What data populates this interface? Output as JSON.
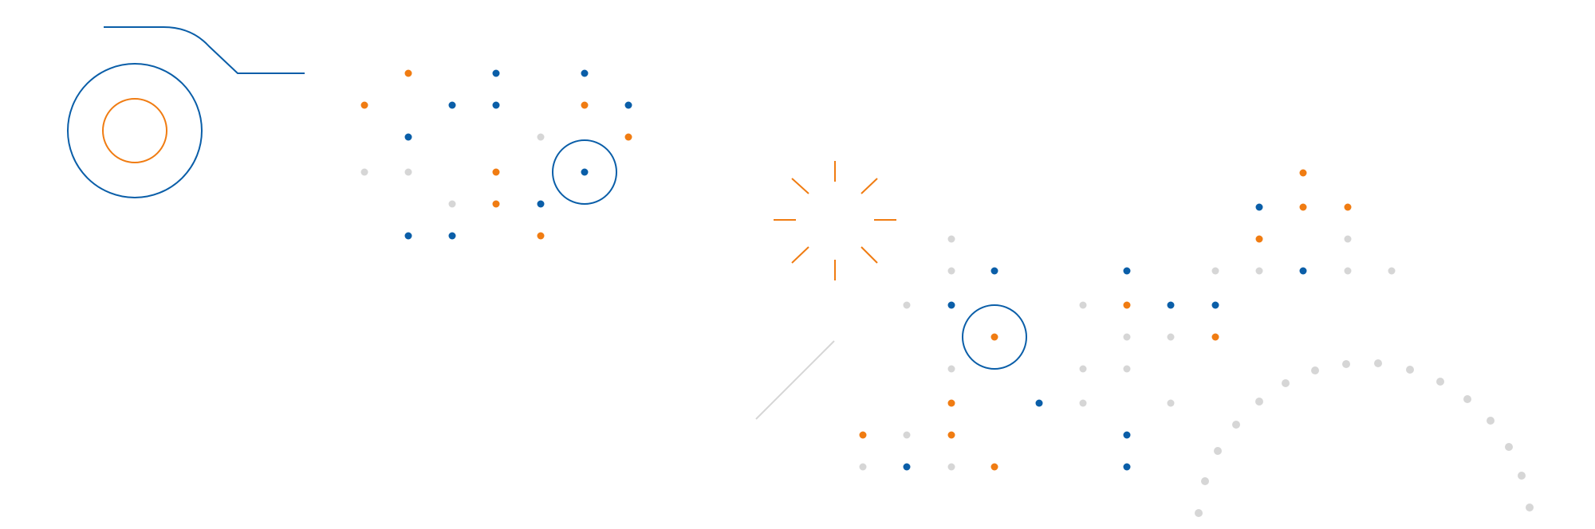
{
  "palette": {
    "blue": "#0a5ea8",
    "orange": "#f07c12",
    "gray": "#d6d6d6",
    "background": "#ffffff"
  },
  "decorations": {
    "dot_grid_left": "dot-grid",
    "dot_grid_right": "dot-grid",
    "dotted_arc": "dotted-arc",
    "sunburst": "sunburst-icon",
    "target_rings": "concentric-circles-icon"
  }
}
